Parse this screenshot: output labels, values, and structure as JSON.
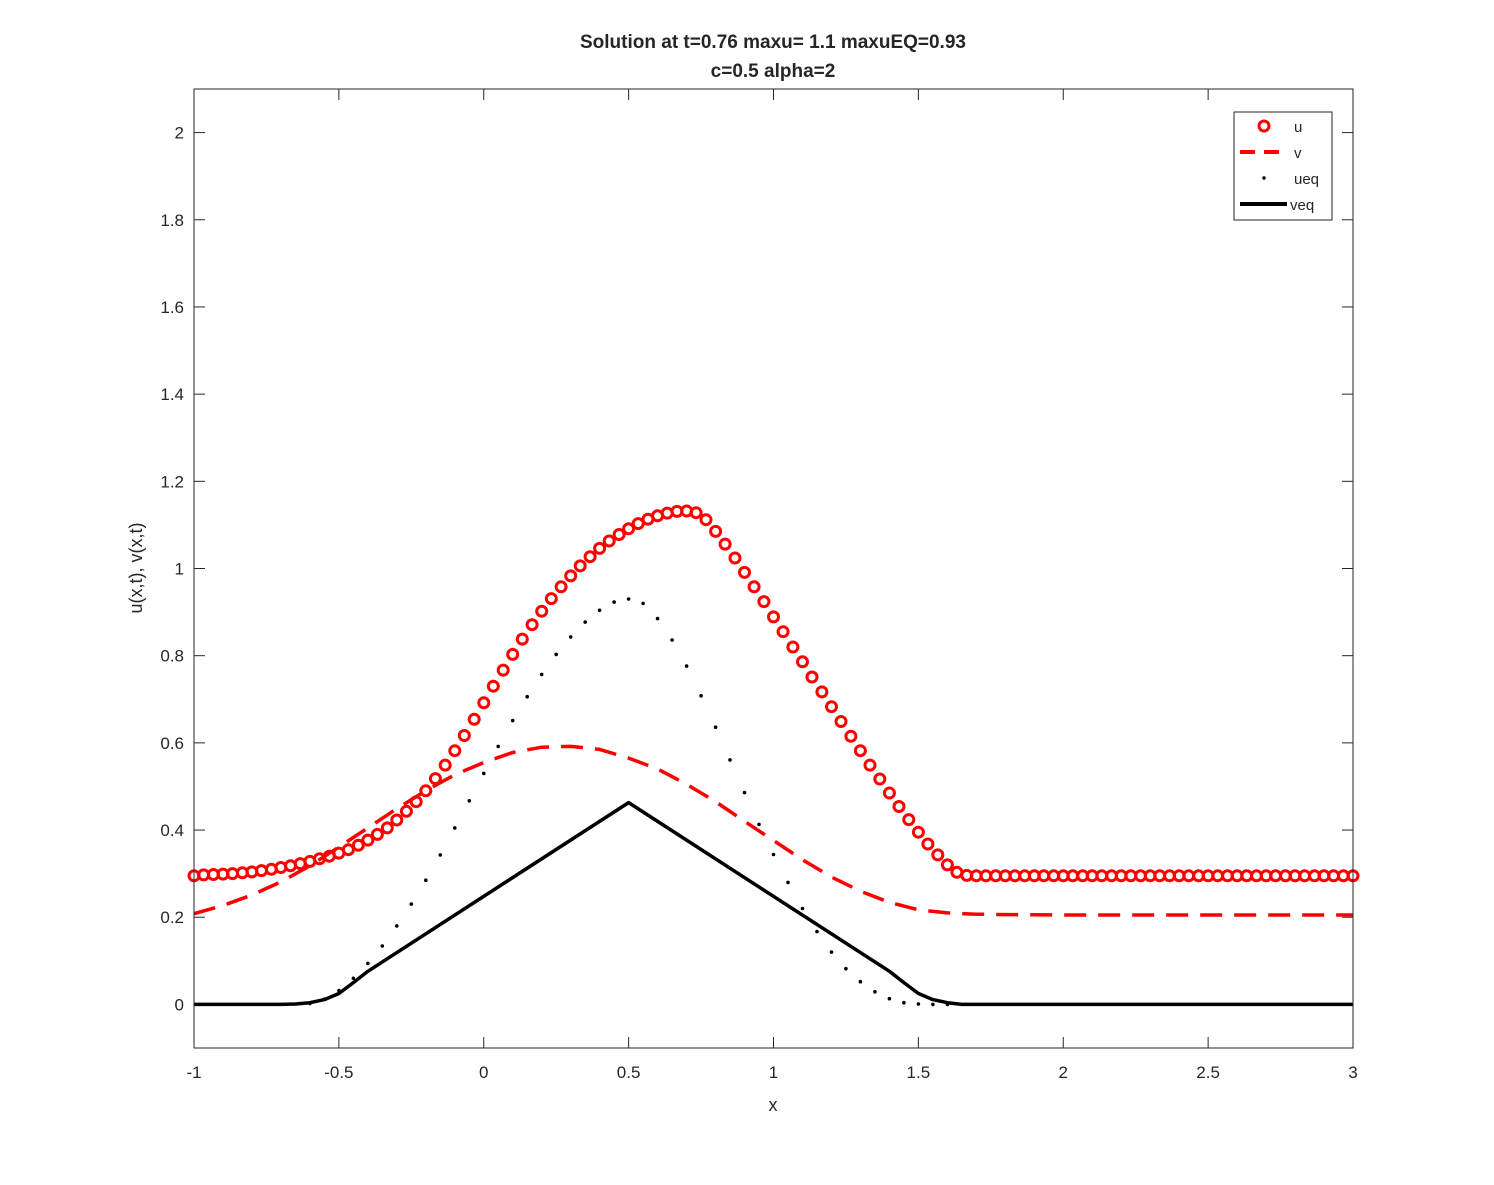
{
  "chart_data": {
    "type": "line",
    "title": "Solution at t=0.76 maxu= 1.1 maxuEQ=0.93",
    "subtitle": "c=0.5 alpha=2",
    "xlabel": "x",
    "ylabel": "u(x,t), v(x,t)",
    "xlim": [
      -1,
      3
    ],
    "ylim": [
      -0.1,
      2.1
    ],
    "xticks": [
      -1,
      -0.5,
      0,
      0.5,
      1,
      1.5,
      2,
      2.5,
      3
    ],
    "xtick_labels": [
      "-1",
      "-0.5",
      "0",
      "0.5",
      "1",
      "1.5",
      "2",
      "2.5",
      "3"
    ],
    "yticks": [
      0,
      0.2,
      0.4,
      0.6,
      0.8,
      1,
      1.2,
      1.4,
      1.6,
      1.8,
      2
    ],
    "ytick_labels": [
      "0",
      "0.2",
      "0.4",
      "0.6",
      "0.8",
      "1",
      "1.2",
      "1.4",
      "1.6",
      "1.8",
      "2"
    ],
    "legend_position": "top-right",
    "series": [
      {
        "name": "u",
        "style": "circle-markers",
        "color": "#ff0000",
        "x": [
          -1.0,
          -0.967,
          -0.933,
          -0.9,
          -0.867,
          -0.833,
          -0.8,
          -0.767,
          -0.733,
          -0.7,
          -0.667,
          -0.633,
          -0.6,
          -0.567,
          -0.533,
          -0.5,
          -0.467,
          -0.433,
          -0.4,
          -0.367,
          -0.333,
          -0.3,
          -0.267,
          -0.233,
          -0.2,
          -0.167,
          -0.133,
          -0.1,
          -0.067,
          -0.033,
          0.0,
          0.033,
          0.067,
          0.1,
          0.133,
          0.167,
          0.2,
          0.233,
          0.267,
          0.3,
          0.333,
          0.367,
          0.4,
          0.433,
          0.467,
          0.5,
          0.533,
          0.567,
          0.6,
          0.633,
          0.667,
          0.7,
          0.733,
          0.767,
          0.8,
          0.833,
          0.867,
          0.9,
          0.933,
          0.967,
          1.0,
          1.033,
          1.067,
          1.1,
          1.133,
          1.167,
          1.2,
          1.233,
          1.267,
          1.3,
          1.333,
          1.367,
          1.4,
          1.433,
          1.467,
          1.5,
          1.533,
          1.567,
          1.6,
          1.633,
          1.667,
          1.7,
          1.733,
          1.767,
          1.8,
          1.833,
          1.867,
          1.9,
          1.933,
          1.967,
          2.0,
          2.033,
          2.067,
          2.1,
          2.133,
          2.167,
          2.2,
          2.233,
          2.267,
          2.3,
          2.333,
          2.367,
          2.4,
          2.433,
          2.467,
          2.5,
          2.533,
          2.567,
          2.6,
          2.633,
          2.667,
          2.7,
          2.733,
          2.767,
          2.8,
          2.833,
          2.867,
          2.9,
          2.933,
          2.967,
          3.0
        ],
        "values": [
          0.295,
          0.297,
          0.298,
          0.299,
          0.3,
          0.302,
          0.304,
          0.307,
          0.31,
          0.314,
          0.318,
          0.323,
          0.328,
          0.334,
          0.34,
          0.347,
          0.355,
          0.365,
          0.377,
          0.39,
          0.405,
          0.423,
          0.443,
          0.465,
          0.49,
          0.518,
          0.549,
          0.582,
          0.617,
          0.654,
          0.692,
          0.73,
          0.767,
          0.803,
          0.838,
          0.871,
          0.902,
          0.931,
          0.958,
          0.983,
          1.006,
          1.027,
          1.046,
          1.063,
          1.078,
          1.091,
          1.103,
          1.113,
          1.121,
          1.127,
          1.131,
          1.132,
          1.128,
          1.112,
          1.085,
          1.056,
          1.024,
          0.991,
          0.958,
          0.924,
          0.889,
          0.855,
          0.82,
          0.786,
          0.751,
          0.717,
          0.683,
          0.649,
          0.615,
          0.582,
          0.549,
          0.517,
          0.485,
          0.454,
          0.424,
          0.395,
          0.368,
          0.343,
          0.32,
          0.303,
          0.296,
          0.295,
          0.295,
          0.295,
          0.295,
          0.295,
          0.295,
          0.295,
          0.295,
          0.295,
          0.295,
          0.295,
          0.295,
          0.295,
          0.295,
          0.295,
          0.295,
          0.295,
          0.295,
          0.295,
          0.295,
          0.295,
          0.295,
          0.295,
          0.295,
          0.295,
          0.295,
          0.295,
          0.295,
          0.295,
          0.295,
          0.295,
          0.295,
          0.295,
          0.295,
          0.295,
          0.295,
          0.295,
          0.295,
          0.295,
          0.295
        ]
      },
      {
        "name": "v",
        "style": "dashed",
        "color": "#ff0000",
        "x": [
          -1.0,
          -0.9,
          -0.8,
          -0.7,
          -0.6,
          -0.5,
          -0.4,
          -0.3,
          -0.2,
          -0.1,
          0.0,
          0.1,
          0.2,
          0.3,
          0.4,
          0.5,
          0.6,
          0.7,
          0.8,
          0.9,
          1.0,
          1.1,
          1.2,
          1.3,
          1.4,
          1.5,
          1.6,
          1.7,
          1.8,
          2.0,
          2.5,
          3.0
        ],
        "values": [
          0.208,
          0.227,
          0.251,
          0.281,
          0.318,
          0.361,
          0.405,
          0.449,
          0.49,
          0.527,
          0.555,
          0.578,
          0.59,
          0.592,
          0.585,
          0.565,
          0.54,
          0.505,
          0.465,
          0.42,
          0.376,
          0.332,
          0.292,
          0.26,
          0.234,
          0.217,
          0.21,
          0.207,
          0.206,
          0.205,
          0.205,
          0.205
        ]
      },
      {
        "name": "ueq",
        "style": "dotted",
        "color": "#000000",
        "x": [
          -0.6,
          -0.55,
          -0.5,
          -0.45,
          -0.4,
          -0.35,
          -0.3,
          -0.25,
          -0.2,
          -0.15,
          -0.1,
          -0.05,
          0.0,
          0.05,
          0.1,
          0.15,
          0.2,
          0.25,
          0.3,
          0.35,
          0.4,
          0.45,
          0.5,
          0.55,
          0.6,
          0.65,
          0.7,
          0.75,
          0.8,
          0.85,
          0.9,
          0.95,
          1.0,
          1.05,
          1.1,
          1.15,
          1.2,
          1.25,
          1.3,
          1.35,
          1.4,
          1.45,
          1.5,
          1.55,
          1.6
        ],
        "values": [
          0.002,
          0.012,
          0.032,
          0.06,
          0.094,
          0.134,
          0.18,
          0.23,
          0.285,
          0.343,
          0.405,
          0.467,
          0.53,
          0.592,
          0.651,
          0.706,
          0.757,
          0.803,
          0.843,
          0.877,
          0.904,
          0.923,
          0.93,
          0.92,
          0.885,
          0.836,
          0.776,
          0.708,
          0.636,
          0.561,
          0.486,
          0.413,
          0.344,
          0.28,
          0.22,
          0.167,
          0.12,
          0.082,
          0.052,
          0.029,
          0.013,
          0.004,
          0.001,
          0.0,
          0.0
        ]
      },
      {
        "name": "veq",
        "style": "solid",
        "color": "#000000",
        "x": [
          -1.0,
          -0.7,
          -0.65,
          -0.6,
          -0.55,
          -0.5,
          -0.45,
          -0.4,
          0.5,
          1.4,
          1.45,
          1.5,
          1.55,
          1.6,
          1.65,
          3.0
        ],
        "values": [
          0.0,
          0.0,
          0.001,
          0.004,
          0.011,
          0.025,
          0.05,
          0.076,
          0.463,
          0.076,
          0.05,
          0.025,
          0.011,
          0.004,
          0.0,
          0.0
        ]
      }
    ]
  }
}
